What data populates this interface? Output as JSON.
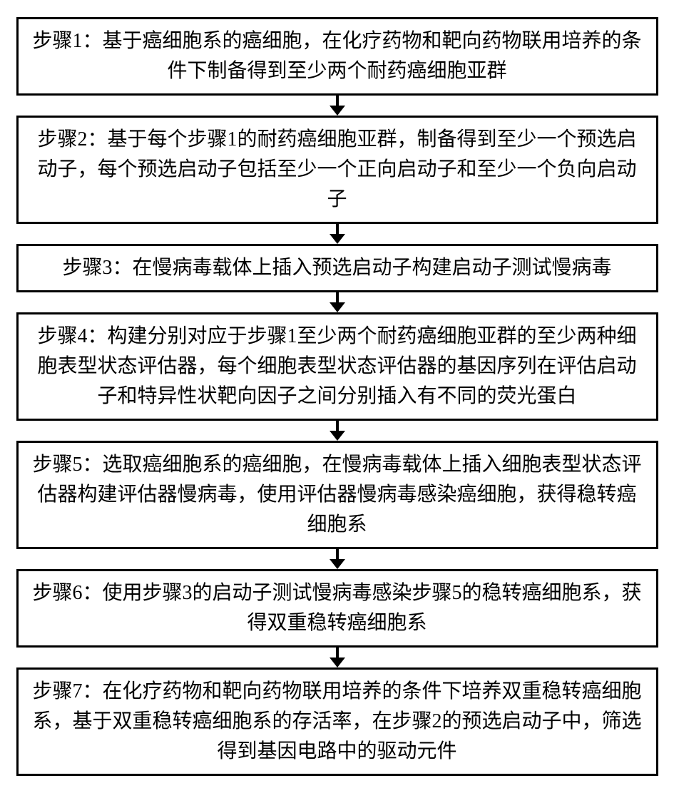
{
  "flowchart": {
    "type": "flowchart",
    "direction": "vertical",
    "box_border_color": "#000000",
    "box_border_width": 3,
    "box_background": "#ffffff",
    "text_color": "#000000",
    "font_family": "SimSun",
    "font_size_pt": 21,
    "arrow": {
      "shaft_length": 14,
      "shaft_width": 4,
      "head_width": 22,
      "head_height": 14,
      "color": "#000000"
    },
    "steps": [
      {
        "id": "step1",
        "label": "步骤1：",
        "text": "基于癌细胞系的癌细胞，在化疗药物和靶向药物联用培养的条件下制备得到至少两个耐药癌细胞亚群"
      },
      {
        "id": "step2",
        "label": "步骤2：",
        "text": "基于每个步骤1的耐药癌细胞亚群，制备得到至少一个预选启动子，每个预选启动子包括至少一个正向启动子和至少一个负向启动子"
      },
      {
        "id": "step3",
        "label": "步骤3：",
        "text": "在慢病毒载体上插入预选启动子构建启动子测试慢病毒"
      },
      {
        "id": "step4",
        "label": "步骤4：",
        "text": "构建分别对应于步骤1至少两个耐药癌细胞亚群的至少两种细胞表型状态评估器，每个细胞表型状态评估器的基因序列在评估启动子和特异性状靶向因子之间分别插入有不同的荧光蛋白"
      },
      {
        "id": "step5",
        "label": "步骤5：",
        "text": "选取癌细胞系的癌细胞，在慢病毒载体上插入细胞表型状态评估器构建评估器慢病毒，使用评估器慢病毒感染癌细胞，获得稳转癌细胞系"
      },
      {
        "id": "step6",
        "label": "步骤6：",
        "text": "使用步骤3的启动子测试慢病毒感染步骤5的稳转癌细胞系，获得双重稳转癌细胞系"
      },
      {
        "id": "step7",
        "label": "步骤7：",
        "text": "在化疗药物和靶向药物联用培养的条件下培养双重稳转癌细胞系，基于双重稳转癌细胞系的存活率，在步骤2的预选启动子中，筛选得到基因电路中的驱动元件"
      }
    ]
  }
}
